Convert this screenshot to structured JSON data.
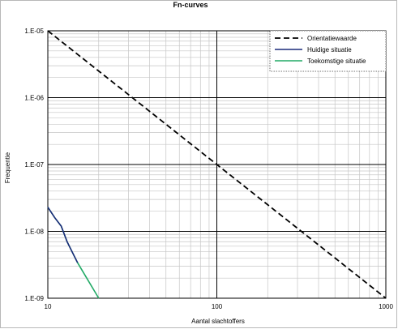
{
  "chart_data": {
    "type": "line",
    "title": "Fn-curves",
    "xlabel": "Aantal slachtoffers",
    "ylabel": "Frequentie",
    "x_scale": "log",
    "y_scale": "log",
    "xlim": [
      10,
      1000
    ],
    "ylim": [
      1e-09,
      1e-05
    ],
    "x_ticks": [
      {
        "value": 10,
        "label": "10"
      },
      {
        "value": 100,
        "label": "100"
      },
      {
        "value": 1000,
        "label": "1000"
      }
    ],
    "y_ticks": [
      {
        "value": 1e-05,
        "label": "1.E-05"
      },
      {
        "value": 1e-06,
        "label": "1.E-06"
      },
      {
        "value": 1e-07,
        "label": "1.E-07"
      },
      {
        "value": 1e-08,
        "label": "1.E-08"
      },
      {
        "value": 1e-09,
        "label": "1.E-09"
      }
    ],
    "grid": true,
    "legend_position": "top-right",
    "series": [
      {
        "name": "Orientatiewaarde",
        "color": "#000000",
        "style": "dashed",
        "x": [
          10,
          1000
        ],
        "y": [
          1e-05,
          1e-09
        ]
      },
      {
        "name": "Huidige situatie",
        "color": "#1a2a7a",
        "style": "solid",
        "x": [
          10,
          11,
          12,
          13,
          14,
          15
        ],
        "y": [
          2.3e-08,
          1.6e-08,
          1.2e-08,
          7e-09,
          4.8e-09,
          3.4e-09
        ]
      },
      {
        "name": "Toekomstige situatie",
        "color": "#22aa66",
        "style": "solid",
        "x": [
          10,
          11,
          12,
          13,
          14,
          15,
          17,
          20
        ],
        "y": [
          2.3e-08,
          1.6e-08,
          1.2e-08,
          7e-09,
          4.8e-09,
          3.4e-09,
          2e-09,
          1e-09
        ]
      }
    ]
  }
}
